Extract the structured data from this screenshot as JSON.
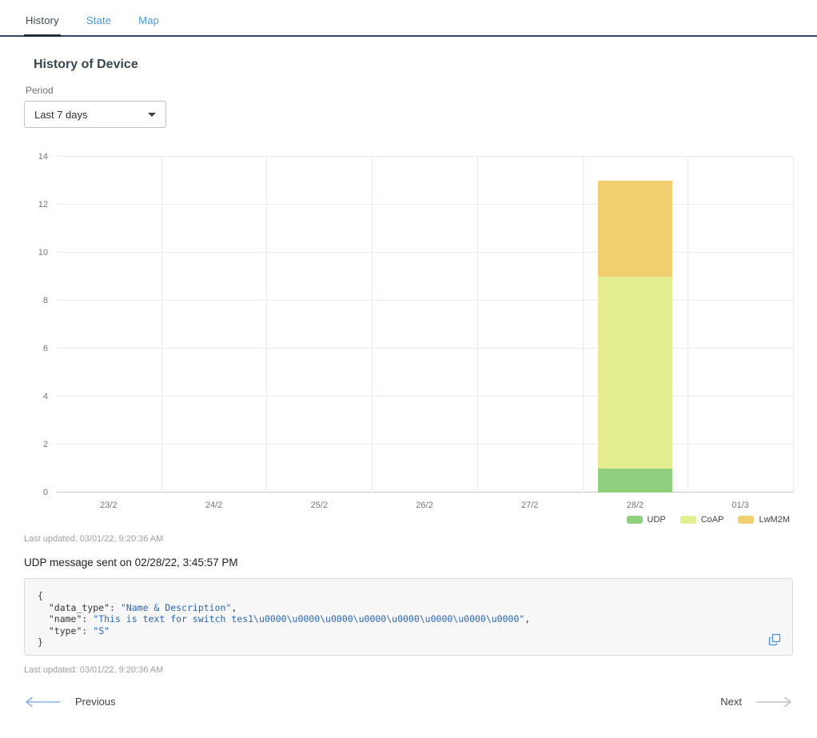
{
  "tabs": [
    {
      "label": "History",
      "active": true
    },
    {
      "label": "State",
      "active": false
    },
    {
      "label": "Map",
      "active": false
    }
  ],
  "header": {
    "title": "History of Device",
    "period_label": "Period",
    "period_value": "Last 7 days"
  },
  "chart_data": {
    "type": "bar",
    "stacked": true,
    "title": "",
    "categories": [
      "23/2",
      "24/2",
      "25/2",
      "26/2",
      "27/2",
      "28/2",
      "01/3"
    ],
    "series": [
      {
        "name": "UDP",
        "color": "#90CF7E",
        "values": [
          0,
          0,
          0,
          0,
          0,
          1,
          0
        ]
      },
      {
        "name": "CoAP",
        "color": "#E4EE90",
        "values": [
          0,
          0,
          0,
          0,
          0,
          8,
          0
        ]
      },
      {
        "name": "LwM2M",
        "color": "#F1CE70",
        "values": [
          0,
          0,
          0,
          0,
          0,
          4,
          0
        ]
      }
    ],
    "ylim": [
      0,
      14
    ],
    "ytick_step": 2,
    "grid": true,
    "legend_position": "bottom-right"
  },
  "status": {
    "chart_last_updated": "Last updated: 03/01/22, 9:20:36 AM",
    "message_last_updated": "Last updated: 03/01/22, 9:20:36 AM"
  },
  "message": {
    "title": "UDP message sent on 02/28/22, 3:45:57 PM"
  },
  "code_block": {
    "lines": [
      [
        {
          "text": "{",
          "type": "plain"
        }
      ],
      [
        {
          "text": "  ",
          "type": "plain"
        },
        {
          "text": "\"data_type\"",
          "type": "key"
        },
        {
          "text": ": ",
          "type": "plain"
        },
        {
          "text": "\"Name & Description\"",
          "type": "value"
        },
        {
          "text": ",",
          "type": "plain"
        }
      ],
      [
        {
          "text": "  ",
          "type": "plain"
        },
        {
          "text": "\"name\"",
          "type": "key"
        },
        {
          "text": ": ",
          "type": "plain"
        },
        {
          "text": "\"This is text for switch tes1\\u0000\\u0000\\u0000\\u0000\\u0000\\u0000\\u0000\\u0000\"",
          "type": "value"
        },
        {
          "text": ",",
          "type": "plain"
        }
      ],
      [
        {
          "text": "  ",
          "type": "plain"
        },
        {
          "text": "\"type\"",
          "type": "key"
        },
        {
          "text": ": ",
          "type": "plain"
        },
        {
          "text": "\"S\"",
          "type": "value"
        }
      ],
      [
        {
          "text": "}",
          "type": "plain"
        }
      ]
    ]
  },
  "pagination": {
    "previous": "Previous",
    "next": "Next"
  }
}
